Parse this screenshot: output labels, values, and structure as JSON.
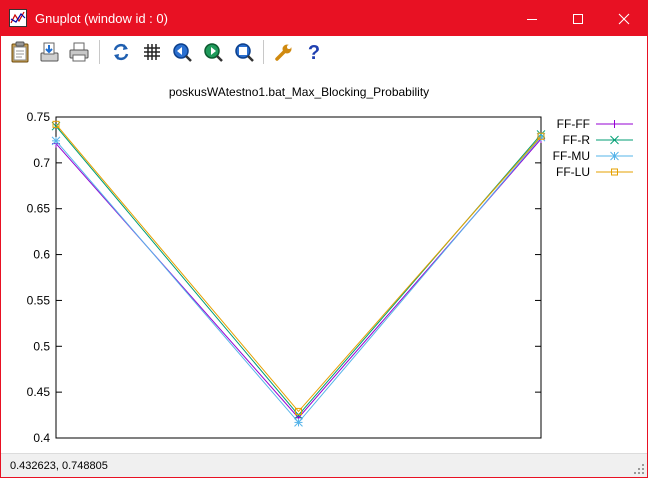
{
  "window": {
    "title": "Gnuplot (window id : 0)",
    "accent_color": "#e81123"
  },
  "toolbar": {
    "buttons": [
      {
        "name": "copy-to-clipboard",
        "icon": "clipboard-icon"
      },
      {
        "name": "print",
        "icon": "print-preview-icon"
      },
      {
        "name": "printer",
        "icon": "printer-icon"
      },
      {
        "name": "replot",
        "icon": "refresh-icon"
      },
      {
        "name": "grid",
        "icon": "grid-icon"
      },
      {
        "name": "zoom-previous",
        "icon": "zoom-previous-icon"
      },
      {
        "name": "zoom-next",
        "icon": "zoom-next-icon"
      },
      {
        "name": "unzoom",
        "icon": "unzoom-icon"
      },
      {
        "name": "options",
        "icon": "wrench-icon"
      },
      {
        "name": "help",
        "icon": "help-icon"
      }
    ]
  },
  "status": {
    "coordinates": "0.432623,  0.748805"
  },
  "chart_data": {
    "type": "line",
    "title": "poskusWAtestno1.bat_Max_Blocking_Probability",
    "xlabel": "",
    "ylabel": "",
    "x": [
      0,
      1,
      2
    ],
    "xlim": [
      0,
      2
    ],
    "ylim": [
      0.4,
      0.75
    ],
    "yticks": [
      "0.4",
      "0.45",
      "0.5",
      "0.55",
      "0.6",
      "0.65",
      "0.7",
      "0.75"
    ],
    "ytick_values": [
      0.4,
      0.45,
      0.5,
      0.55,
      0.6,
      0.65,
      0.7,
      0.75
    ],
    "grid": false,
    "legend_position": "outside-right-top",
    "series": [
      {
        "name": "FF-FF",
        "values": [
          0.721,
          0.422,
          0.726
        ],
        "color": "#9400d3",
        "marker": "plus"
      },
      {
        "name": "FF-R",
        "values": [
          0.74,
          0.425,
          0.731
        ],
        "color": "#009e73",
        "marker": "cross"
      },
      {
        "name": "FF-MU",
        "values": [
          0.724,
          0.417,
          0.728
        ],
        "color": "#56b4e9",
        "marker": "star"
      },
      {
        "name": "FF-LU",
        "values": [
          0.742,
          0.429,
          0.729
        ],
        "color": "#e6a000",
        "marker": "square"
      }
    ]
  }
}
